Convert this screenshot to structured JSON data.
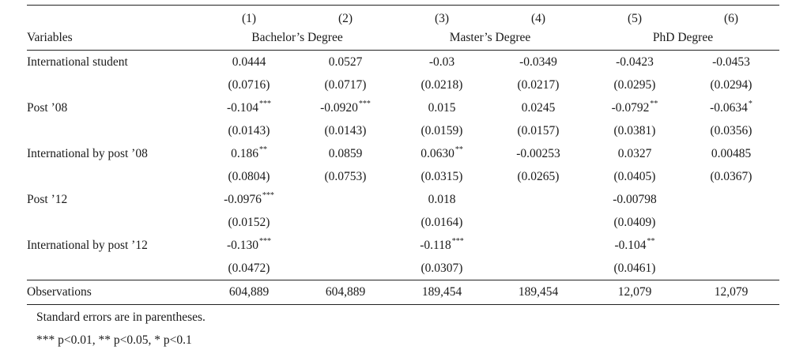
{
  "columns": [
    "(1)",
    "(2)",
    "(3)",
    "(4)",
    "(5)",
    "(6)"
  ],
  "variables_header": "Variables",
  "groups": [
    "Bachelor’s Degree",
    "Master’s Degree",
    "PhD Degree"
  ],
  "rows": [
    {
      "label": "International student",
      "coef": [
        [
          "0.0444",
          ""
        ],
        [
          "0.0527",
          ""
        ],
        [
          "-0.03",
          ""
        ],
        [
          "-0.0349",
          ""
        ],
        [
          "-0.0423",
          ""
        ],
        [
          "-0.0453",
          ""
        ]
      ],
      "se": [
        "(0.0716)",
        "(0.0717)",
        "(0.0218)",
        "(0.0217)",
        "(0.0295)",
        "(0.0294)"
      ]
    },
    {
      "label": "Post ’08",
      "coef": [
        [
          "-0.104",
          "***"
        ],
        [
          "-0.0920",
          "***"
        ],
        [
          "0.015",
          ""
        ],
        [
          "0.0245",
          ""
        ],
        [
          "-0.0792",
          "**"
        ],
        [
          "-0.0634",
          "*"
        ]
      ],
      "se": [
        "(0.0143)",
        "(0.0143)",
        "(0.0159)",
        "(0.0157)",
        "(0.0381)",
        "(0.0356)"
      ]
    },
    {
      "label": "International by post ’08",
      "coef": [
        [
          "0.186",
          "**"
        ],
        [
          "0.0859",
          ""
        ],
        [
          "0.0630",
          "**"
        ],
        [
          "-0.00253",
          ""
        ],
        [
          "0.0327",
          ""
        ],
        [
          "0.00485",
          ""
        ]
      ],
      "se": [
        "(0.0804)",
        "(0.0753)",
        "(0.0315)",
        "(0.0265)",
        "(0.0405)",
        "(0.0367)"
      ]
    },
    {
      "label": "Post ’12",
      "coef": [
        [
          "-0.0976",
          "***"
        ],
        [
          "",
          ""
        ],
        [
          "0.018",
          ""
        ],
        [
          "",
          ""
        ],
        [
          "-0.00798",
          ""
        ],
        [
          "",
          ""
        ]
      ],
      "se": [
        "(0.0152)",
        "",
        "(0.0164)",
        "",
        "(0.0409)",
        ""
      ]
    },
    {
      "label": "International by post ’12",
      "coef": [
        [
          "-0.130",
          "***"
        ],
        [
          "",
          ""
        ],
        [
          "-0.118",
          "***"
        ],
        [
          "",
          ""
        ],
        [
          "-0.104",
          "**"
        ],
        [
          "",
          ""
        ]
      ],
      "se": [
        "(0.0472)",
        "",
        "(0.0307)",
        "",
        "(0.0461)",
        ""
      ]
    }
  ],
  "observations": {
    "label": "Observations",
    "values": [
      "604,889",
      "604,889",
      "189,454",
      "189,454",
      "12,079",
      "12,079"
    ]
  },
  "notes": [
    "Standard errors are in parentheses.",
    "*** p<0.01, ** p<0.05, * p<0.1"
  ]
}
